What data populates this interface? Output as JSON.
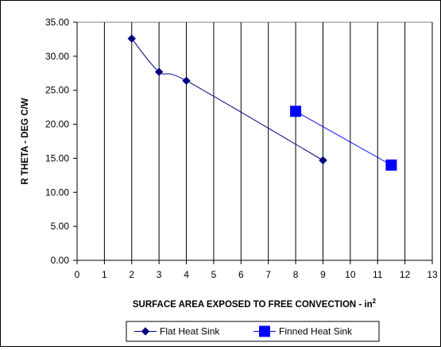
{
  "chart_data": {
    "type": "line",
    "title": "",
    "xlabel": "SURFACE AREA EXPOSED TO FREE CONVECTION - in",
    "xlabel_superscript": "2",
    "ylabel": "R THETA - DEG C/W",
    "xlim": [
      0,
      13
    ],
    "ylim": [
      0,
      35
    ],
    "x_ticks": [
      "0",
      "1",
      "2",
      "3",
      "4",
      "5",
      "6",
      "7",
      "8",
      "9",
      "10",
      "11",
      "12",
      "13"
    ],
    "y_ticks": [
      "0.00",
      "5.00",
      "10.00",
      "15.00",
      "20.00",
      "25.00",
      "30.00",
      "35.00"
    ],
    "grid": "vertical",
    "legend_position": "bottom",
    "series": [
      {
        "name": "Flat Heat Sink",
        "marker": "diamond",
        "color": "#000080",
        "smooth": true,
        "points": [
          {
            "x": 2,
            "y": 32.6
          },
          {
            "x": 3,
            "y": 27.7
          },
          {
            "x": 4,
            "y": 26.4
          },
          {
            "x": 9,
            "y": 14.7
          }
        ]
      },
      {
        "name": "Finned Heat Sink",
        "marker": "square",
        "color": "#0000ff",
        "smooth": false,
        "points": [
          {
            "x": 8,
            "y": 21.9
          },
          {
            "x": 11.5,
            "y": 14.0
          }
        ]
      }
    ]
  }
}
